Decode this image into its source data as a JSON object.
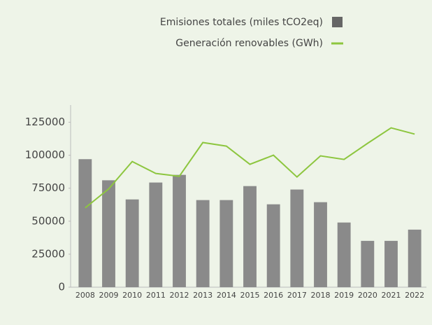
{
  "chart_data": {
    "type": "bar_line",
    "categories": [
      "2008",
      "2009",
      "2010",
      "2011",
      "2012",
      "2013",
      "2014",
      "2015",
      "2016",
      "2017",
      "2018",
      "2019",
      "2020",
      "2021",
      "2022"
    ],
    "series": [
      {
        "name": "Emisiones totales (miles tCO2eq)",
        "type": "bar",
        "color": "#8a8a8a",
        "values": [
          97000,
          81000,
          66500,
          79300,
          85100,
          66000,
          66000,
          76600,
          62800,
          74000,
          64400,
          49000,
          35100,
          35100,
          43600
        ]
      },
      {
        "name": "Generación renovables (GWh)",
        "type": "line",
        "color": "#8dc63f",
        "values": [
          60100,
          74500,
          95200,
          86200,
          84000,
          109600,
          106900,
          93100,
          100000,
          83500,
          99500,
          96800,
          109000,
          120700,
          116000
        ]
      }
    ],
    "ylim": [
      0,
      138000
    ],
    "yticks": [
      0,
      25000,
      50000,
      75000,
      100000,
      125000
    ],
    "legend": "top-right"
  }
}
